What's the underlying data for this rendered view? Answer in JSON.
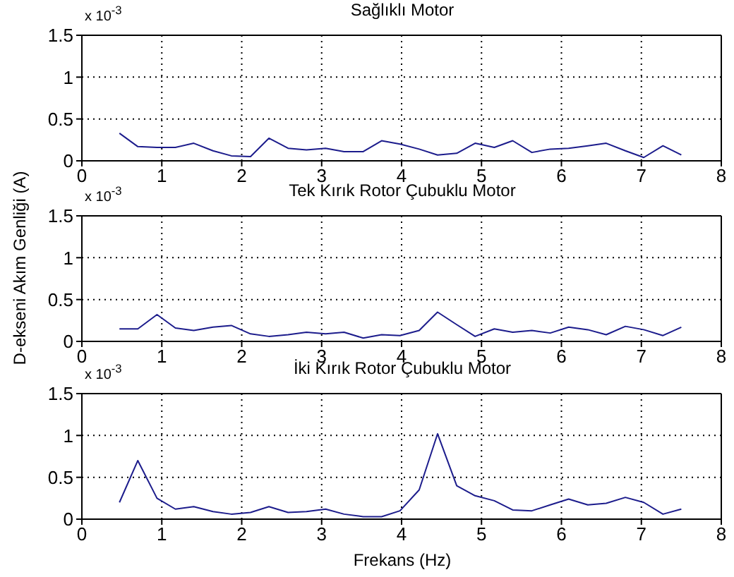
{
  "chart_data": [
    {
      "type": "line",
      "title": "Sağlıklı Motor",
      "annotations": [
        "x 10$^{-3}$"
      ],
      "x": [
        0.47,
        0.7,
        0.94,
        1.17,
        1.4,
        1.64,
        1.87,
        2.11,
        2.34,
        2.58,
        2.81,
        3.05,
        3.28,
        3.52,
        3.75,
        3.98,
        4.22,
        4.45,
        4.69,
        4.92,
        5.16,
        5.39,
        5.63,
        5.86,
        6.09,
        6.33,
        6.56,
        6.8,
        7.03,
        7.27,
        7.5
      ],
      "series": [
        {
          "color": "#1c1c8c",
          "values": [
            0.33,
            0.17,
            0.16,
            0.16,
            0.21,
            0.12,
            0.06,
            0.05,
            0.27,
            0.15,
            0.13,
            0.15,
            0.11,
            0.11,
            0.24,
            0.2,
            0.14,
            0.07,
            0.09,
            0.21,
            0.16,
            0.24,
            0.1,
            0.14,
            0.15,
            0.18,
            0.21,
            0.12,
            0.04,
            0.18,
            0.07
          ]
        }
      ],
      "xlim": [
        0,
        8
      ],
      "xticks": [
        0,
        1,
        2,
        3,
        4,
        5,
        6,
        7,
        8
      ],
      "ylim": [
        0,
        1.5
      ],
      "yticks": [
        0,
        0.5,
        1,
        1.5
      ],
      "grid": true
    },
    {
      "type": "line",
      "title": "Tek Kırık Rotor Çubuklu Motor",
      "ylabel": "D-ekseni Akım Genliği (A)",
      "annotations": [
        "x 10$^{-3}$"
      ],
      "x": [
        0.47,
        0.7,
        0.94,
        1.17,
        1.4,
        1.64,
        1.87,
        2.11,
        2.34,
        2.58,
        2.81,
        3.05,
        3.28,
        3.52,
        3.75,
        3.98,
        4.22,
        4.45,
        4.69,
        4.92,
        5.16,
        5.39,
        5.63,
        5.86,
        6.09,
        6.33,
        6.56,
        6.8,
        7.03,
        7.27,
        7.5
      ],
      "series": [
        {
          "color": "#1c1c8c",
          "values": [
            0.15,
            0.15,
            0.32,
            0.16,
            0.13,
            0.17,
            0.19,
            0.09,
            0.06,
            0.08,
            0.11,
            0.09,
            0.11,
            0.04,
            0.08,
            0.07,
            0.13,
            0.35,
            0.2,
            0.06,
            0.15,
            0.11,
            0.13,
            0.1,
            0.17,
            0.14,
            0.08,
            0.18,
            0.14,
            0.07,
            0.17
          ]
        }
      ],
      "xlim": [
        0,
        8
      ],
      "xticks": [
        0,
        1,
        2,
        3,
        4,
        5,
        6,
        7,
        8
      ],
      "ylim": [
        0,
        1.5
      ],
      "yticks": [
        0,
        0.5,
        1,
        1.5
      ],
      "grid": true
    },
    {
      "type": "line",
      "title": "İki Kırık Rotor Çubuklu Motor",
      "xlabel": "Frekans (Hz)",
      "annotations": [
        "x 10$^{-3}$"
      ],
      "x": [
        0.47,
        0.7,
        0.94,
        1.17,
        1.4,
        1.64,
        1.87,
        2.11,
        2.34,
        2.58,
        2.81,
        3.05,
        3.28,
        3.52,
        3.75,
        3.98,
        4.22,
        4.45,
        4.69,
        4.92,
        5.16,
        5.39,
        5.63,
        5.86,
        6.09,
        6.33,
        6.56,
        6.8,
        7.03,
        7.27,
        7.5
      ],
      "series": [
        {
          "color": "#1c1c8c",
          "values": [
            0.2,
            0.7,
            0.25,
            0.12,
            0.15,
            0.09,
            0.06,
            0.08,
            0.15,
            0.08,
            0.09,
            0.12,
            0.06,
            0.03,
            0.03,
            0.1,
            0.35,
            1.02,
            0.4,
            0.28,
            0.22,
            0.11,
            0.1,
            0.17,
            0.24,
            0.17,
            0.19,
            0.26,
            0.2,
            0.06,
            0.12
          ]
        }
      ],
      "xlim": [
        0,
        8
      ],
      "xticks": [
        0,
        1,
        2,
        3,
        4,
        5,
        6,
        7,
        8
      ],
      "ylim": [
        0,
        1.5
      ],
      "yticks": [
        0,
        0.5,
        1,
        1.5
      ],
      "grid": true
    }
  ]
}
